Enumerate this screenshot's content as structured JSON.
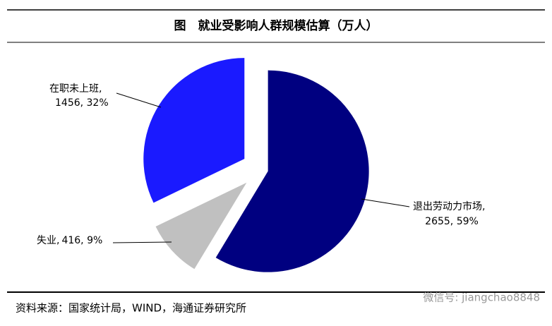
{
  "chart_data": {
    "type": "pie",
    "title": "图　就业受影响人群规模估算（万人）",
    "categories": [
      "退出劳动力市场,",
      "失业,",
      "在职未上班,"
    ],
    "values": [
      2655,
      416,
      1456
    ],
    "value_labels": [
      "2655, 59%",
      "416, 9%",
      "1456, 32%"
    ],
    "colors": [
      "#000080",
      "#c0c0c0",
      "#1a1aff"
    ],
    "source": "资料来源：国家统计局，WIND，海通证券研究所",
    "watermark": "微信号: jiangchao8848"
  }
}
